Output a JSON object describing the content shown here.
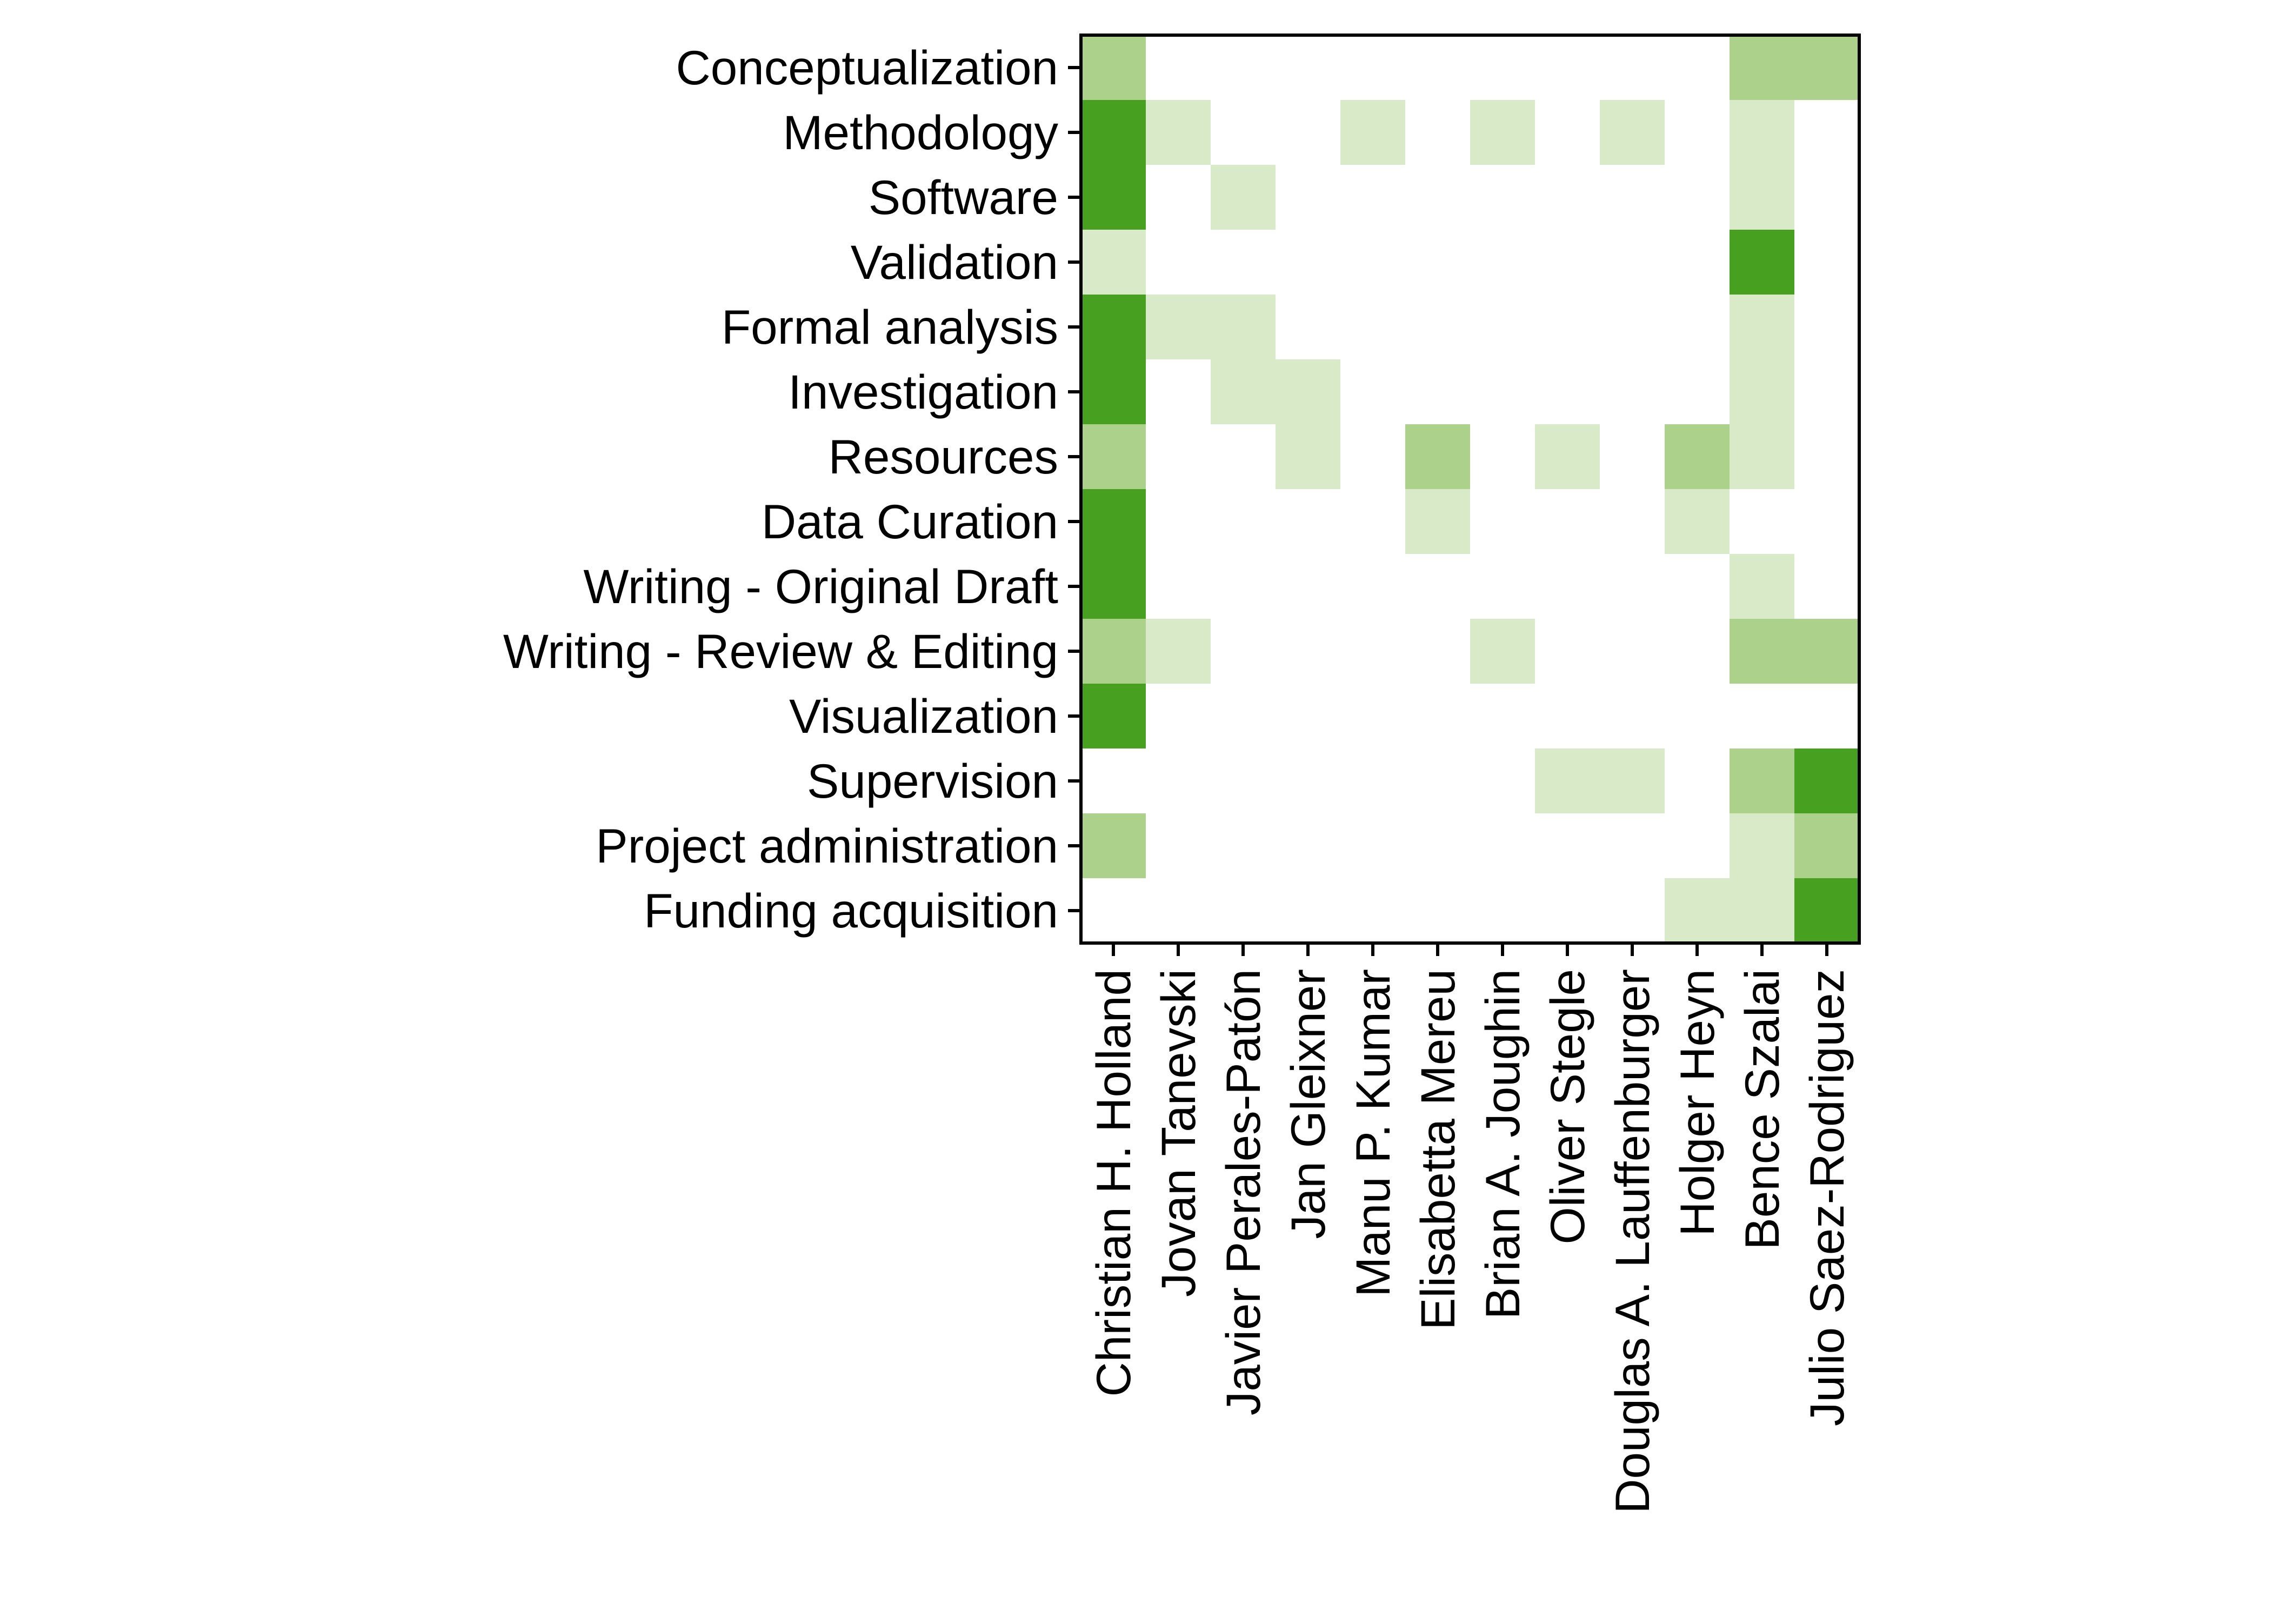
{
  "chart_data": {
    "type": "heatmap",
    "title": "",
    "xlabel": "",
    "ylabel": "",
    "grid": false,
    "legend": "none",
    "rows": [
      "Conceptualization",
      "Methodology",
      "Software",
      "Validation",
      "Formal analysis",
      "Investigation",
      "Resources",
      "Data Curation",
      "Writing - Original Draft",
      "Writing - Review & Editing",
      "Visualization",
      "Supervision",
      "Project administration",
      "Funding acquisition"
    ],
    "columns": [
      "Christian H. Holland",
      "Jovan Tanevski",
      "Javier Perales-Patón",
      "Jan Gleixner",
      "Manu P. Kumar",
      "Elisabetta Mereu",
      "Brian A. Joughin",
      "Oliver Stegle",
      "Douglas A. Lauffenburger",
      "Holger Heyn",
      "Bence Szalai",
      "Julio Saez-Rodriguez"
    ],
    "levels": {
      "0": "#ffffff",
      "1": "#d9eac8",
      "2": "#abd18a",
      "3": "#48a021"
    },
    "values": [
      [
        2,
        0,
        0,
        0,
        0,
        0,
        0,
        0,
        0,
        0,
        2,
        2
      ],
      [
        3,
        1,
        0,
        0,
        1,
        0,
        1,
        0,
        1,
        0,
        1,
        0
      ],
      [
        3,
        0,
        1,
        0,
        0,
        0,
        0,
        0,
        0,
        0,
        1,
        0
      ],
      [
        1,
        0,
        0,
        0,
        0,
        0,
        0,
        0,
        0,
        0,
        3,
        0
      ],
      [
        3,
        1,
        1,
        0,
        0,
        0,
        0,
        0,
        0,
        0,
        1,
        0
      ],
      [
        3,
        0,
        1,
        1,
        0,
        0,
        0,
        0,
        0,
        0,
        1,
        0
      ],
      [
        2,
        0,
        0,
        1,
        0,
        2,
        0,
        1,
        0,
        2,
        1,
        0
      ],
      [
        3,
        0,
        0,
        0,
        0,
        1,
        0,
        0,
        0,
        1,
        0,
        0
      ],
      [
        3,
        0,
        0,
        0,
        0,
        0,
        0,
        0,
        0,
        0,
        1,
        0
      ],
      [
        2,
        1,
        0,
        0,
        0,
        0,
        1,
        0,
        0,
        0,
        2,
        2
      ],
      [
        3,
        0,
        0,
        0,
        0,
        0,
        0,
        0,
        0,
        0,
        0,
        0
      ],
      [
        0,
        0,
        0,
        0,
        0,
        0,
        0,
        1,
        1,
        0,
        2,
        3
      ],
      [
        2,
        0,
        0,
        0,
        0,
        0,
        0,
        0,
        0,
        0,
        1,
        2
      ],
      [
        0,
        0,
        0,
        0,
        0,
        0,
        0,
        0,
        0,
        1,
        1,
        3
      ]
    ]
  }
}
